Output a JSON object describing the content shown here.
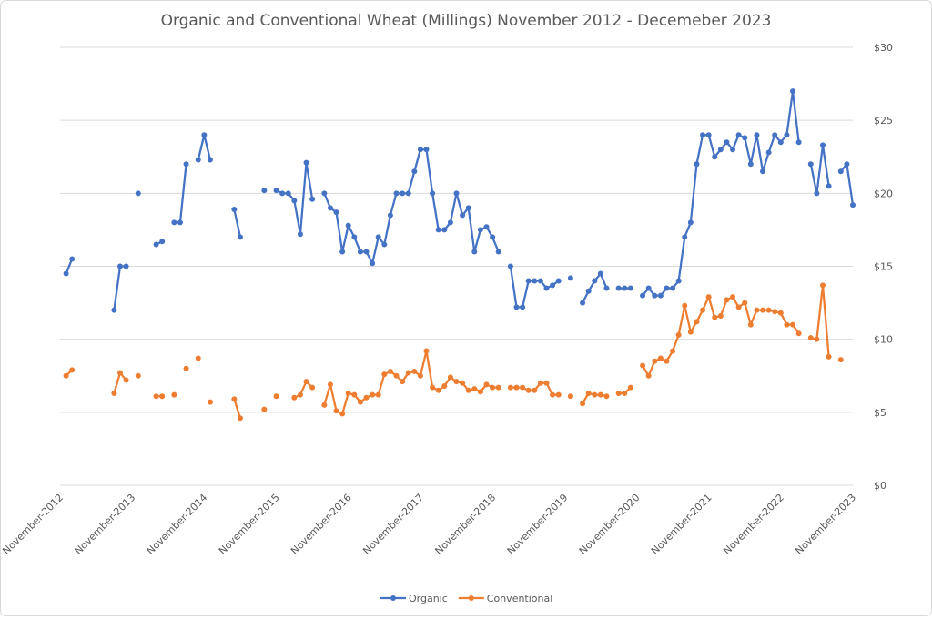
{
  "chart_data": {
    "type": "line",
    "title": "Organic and Conventional Wheat (Millings) November 2012 - Decemeber 2023",
    "categories": [
      "November-2012",
      null,
      null,
      null,
      null,
      null,
      null,
      null,
      null,
      null,
      null,
      null,
      "November-2013",
      null,
      null,
      null,
      null,
      null,
      null,
      null,
      null,
      null,
      null,
      null,
      "November-2014",
      null,
      null,
      null,
      null,
      null,
      null,
      null,
      null,
      null,
      null,
      null,
      "November-2015",
      null,
      null,
      null,
      null,
      null,
      null,
      null,
      null,
      null,
      null,
      null,
      "November-2016",
      null,
      null,
      null,
      null,
      null,
      null,
      null,
      null,
      null,
      null,
      null,
      "November-2017",
      null,
      null,
      null,
      null,
      null,
      null,
      null,
      null,
      null,
      null,
      null,
      "November-2018",
      null,
      null,
      null,
      null,
      null,
      null,
      null,
      null,
      null,
      null,
      null,
      "November-2019",
      null,
      null,
      null,
      null,
      null,
      null,
      null,
      null,
      null,
      null,
      null,
      "November-2020",
      null,
      null,
      null,
      null,
      null,
      null,
      null,
      null,
      null,
      null,
      null,
      "November-2021",
      null,
      null,
      null,
      null,
      null,
      null,
      null,
      null,
      null,
      null,
      null,
      "November-2022",
      null,
      null,
      null,
      null,
      null,
      null,
      null,
      null,
      null,
      null,
      null,
      "November-2023"
    ],
    "series": [
      {
        "name": "Organic",
        "color": "#4472c4",
        "values": [
          null,
          14.5,
          15.5,
          null,
          null,
          null,
          null,
          null,
          null,
          12.0,
          15.0,
          15.0,
          null,
          20.0,
          null,
          null,
          16.5,
          16.7,
          null,
          18.0,
          18.0,
          22.0,
          null,
          22.3,
          24.0,
          22.3,
          null,
          null,
          null,
          18.9,
          17.0,
          null,
          null,
          null,
          20.2,
          null,
          20.2,
          20.0,
          20.0,
          19.5,
          17.2,
          22.1,
          19.6,
          null,
          20.0,
          19.0,
          18.7,
          16.0,
          17.8,
          17.0,
          16.0,
          16.0,
          15.2,
          17.0,
          16.5,
          18.5,
          20.0,
          20.0,
          20.0,
          21.5,
          23.0,
          23.0,
          20.0,
          17.5,
          17.5,
          18.0,
          20.0,
          18.5,
          19.0,
          16.0,
          17.5,
          17.7,
          17.0,
          16.0,
          null,
          15.0,
          12.2,
          12.2,
          14.0,
          14.0,
          14.0,
          13.5,
          13.7,
          14.0,
          null,
          14.2,
          null,
          12.5,
          13.3,
          14.0,
          14.5,
          13.5,
          null,
          13.5,
          13.5,
          13.5,
          null,
          13.0,
          13.5,
          13.0,
          13.0,
          13.5,
          13.5,
          14.0,
          17.0,
          18.0,
          22.0,
          24.0,
          24.0,
          22.5,
          23.0,
          23.5,
          23.0,
          24.0,
          23.8,
          22.0,
          24.0,
          21.5,
          22.8,
          24.0,
          23.5,
          24.0,
          27.0,
          23.5,
          null,
          22.0,
          20.0,
          23.3,
          20.5,
          null,
          21.5,
          22.0,
          19.2
        ]
      },
      {
        "name": "Conventional",
        "color": "#ed7d31",
        "values": [
          null,
          7.5,
          7.9,
          null,
          null,
          null,
          null,
          null,
          null,
          6.3,
          7.7,
          7.2,
          null,
          7.5,
          null,
          null,
          6.1,
          6.1,
          null,
          6.2,
          null,
          8.0,
          null,
          8.7,
          null,
          5.7,
          null,
          null,
          null,
          5.9,
          4.6,
          null,
          null,
          null,
          5.2,
          null,
          6.1,
          null,
          null,
          6.0,
          6.2,
          7.1,
          6.7,
          null,
          5.5,
          6.9,
          5.1,
          4.9,
          6.3,
          6.2,
          5.7,
          6.0,
          6.2,
          6.2,
          7.6,
          7.8,
          7.5,
          7.1,
          7.7,
          7.8,
          7.5,
          9.2,
          6.7,
          6.5,
          6.8,
          7.4,
          7.1,
          7.0,
          6.5,
          6.6,
          6.4,
          6.9,
          6.7,
          6.7,
          null,
          6.7,
          6.7,
          6.7,
          6.5,
          6.5,
          7.0,
          7.0,
          6.2,
          6.2,
          null,
          6.1,
          null,
          5.6,
          6.3,
          6.2,
          6.2,
          6.1,
          null,
          6.3,
          6.3,
          6.7,
          null,
          8.2,
          7.5,
          8.5,
          8.7,
          8.5,
          9.2,
          10.3,
          12.3,
          10.5,
          11.2,
          12.0,
          12.9,
          11.5,
          11.6,
          12.7,
          12.9,
          12.2,
          12.5,
          11.0,
          12.0,
          12.0,
          12.0,
          11.9,
          11.8,
          11.0,
          11.0,
          10.4,
          null,
          10.1,
          10.0,
          13.7,
          8.8,
          null,
          8.6,
          null,
          null
        ]
      }
    ],
    "ylim": [
      0,
      30
    ],
    "yticks": [
      {
        "value": 0,
        "label": "$0"
      },
      {
        "value": 5,
        "label": "$5"
      },
      {
        "value": 10,
        "label": "$10"
      },
      {
        "value": 15,
        "label": "$15"
      },
      {
        "value": 20,
        "label": "$20"
      },
      {
        "value": 25,
        "label": "$25"
      },
      {
        "value": 30,
        "label": "$30"
      }
    ],
    "y_axis_side": "right",
    "grid": true,
    "legend": "bottom"
  }
}
